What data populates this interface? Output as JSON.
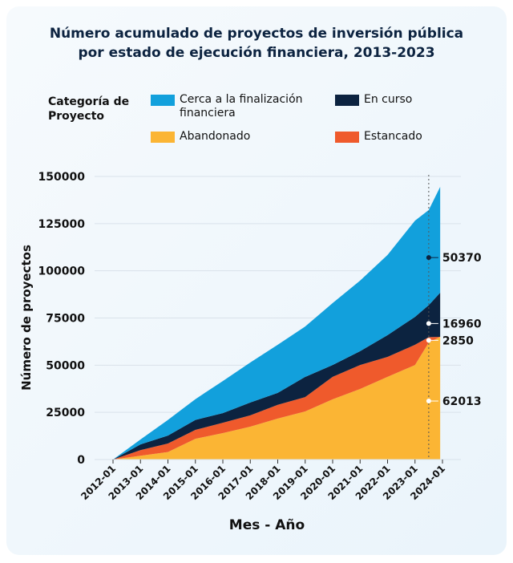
{
  "chart_data": {
    "type": "area",
    "stacked": true,
    "title": "Número acumulado de proyectos de inversión pública por estado de ejecución financiera, 2013-2023",
    "title_lines": [
      "Número acumulado de proyectos de inversión pública",
      "por estado de ejecución financiera, 2013-2023"
    ],
    "xlabel": "Mes - Año",
    "ylabel": "Número de proyectos",
    "legend_title": "Categoría de Proyecto",
    "legend_placement": "top",
    "ylim": [
      0,
      150000
    ],
    "yticks": [
      0,
      25000,
      50000,
      75000,
      100000,
      125000,
      150000
    ],
    "xticks": [
      "2012-01",
      "2013-01",
      "2014-01",
      "2015-01",
      "2016-01",
      "2017-01",
      "2018-01",
      "2019-01",
      "2020-01",
      "2021-01",
      "2022-01",
      "2023-01",
      "2024-01"
    ],
    "grid": true,
    "x": [
      "2012-01",
      "2013-01",
      "2014-01",
      "2015-01",
      "2016-01",
      "2017-01",
      "2018-01",
      "2019-01",
      "2020-01",
      "2021-01",
      "2022-01",
      "2023-01",
      "2023-07",
      "2023-12"
    ],
    "series": [
      {
        "name": "Abandonado",
        "color": "#fbb534",
        "values": [
          0,
          2000,
          4000,
          11000,
          14000,
          17400,
          21700,
          25500,
          31900,
          37400,
          43800,
          50100,
          62013,
          65000
        ]
      },
      {
        "name": "Estancado",
        "color": "#ef5a2c",
        "values": [
          0,
          3000,
          4500,
          4700,
          5500,
          6000,
          7300,
          7600,
          11900,
          12700,
          10600,
          10700,
          2850,
          0
        ]
      },
      {
        "name": "En curso",
        "color": "#0c2340",
        "values": [
          0,
          3000,
          4200,
          5300,
          5100,
          6800,
          6300,
          10700,
          6300,
          7300,
          11500,
          14800,
          16960,
          23400
        ]
      },
      {
        "name": "Cerca a la finalización financiera",
        "color": "#12a0dc",
        "values": [
          0,
          2600,
          8300,
          11000,
          17000,
          21200,
          25500,
          26700,
          32800,
          37400,
          42500,
          51000,
          50370,
          56100
        ]
      }
    ],
    "legend_labels": [
      "Cerca a la finalización financiera",
      "En curso",
      "Abandonado",
      "Estancado"
    ],
    "annotations": {
      "x": "2023-07",
      "labels": [
        "50370",
        "16960",
        "2850",
        "62013"
      ]
    }
  }
}
